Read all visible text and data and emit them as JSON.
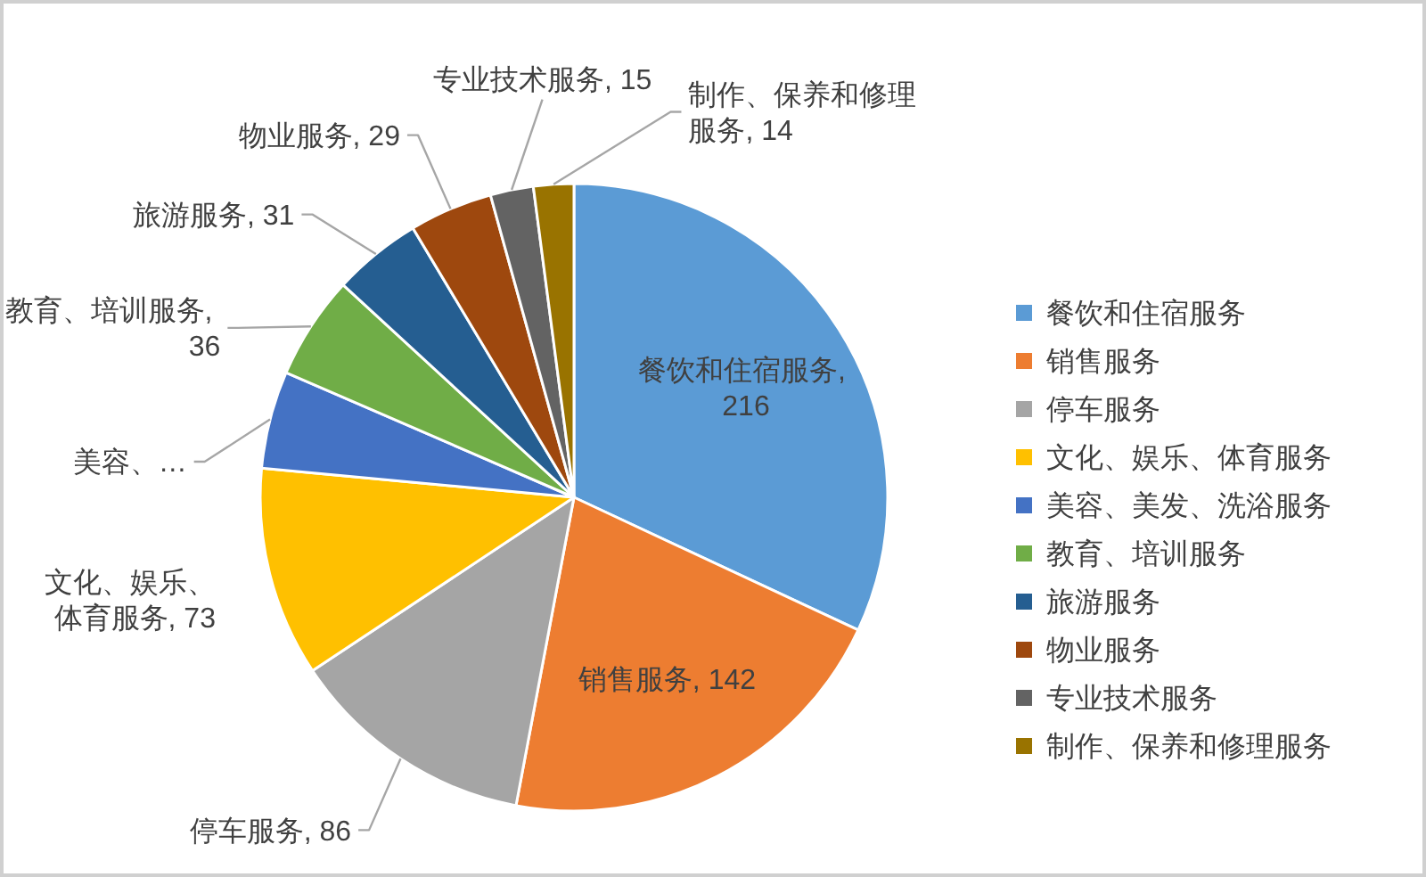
{
  "chart_data": {
    "type": "pie",
    "categories": [
      "餐饮和住宿服务",
      "销售服务",
      "停车服务",
      "文化、娱乐、体育服务",
      "美容、美发、洗浴服务",
      "教育、培训服务",
      "旅游服务",
      "物业服务",
      "专业技术服务",
      "制作、保养和修理服务"
    ],
    "values": [
      216,
      142,
      86,
      73,
      34,
      36,
      31,
      29,
      15,
      14
    ],
    "colors": [
      "#5b9bd5",
      "#ed7d31",
      "#a5a5a5",
      "#ffc000",
      "#4472c4",
      "#70ad47",
      "#255e91",
      "#9e480e",
      "#636363",
      "#997300"
    ],
    "value_labels": [
      "餐饮和住宿服务, 216",
      "销售服务, 142",
      "停车服务, 86",
      "文化、娱乐、体育服务, 73",
      "美容、…",
      "教育、培训服务, 36",
      "旅游服务, 31",
      "物业服务, 29",
      "专业技术服务, 15",
      "制作、保养和修理服务, 14"
    ],
    "legend": "right"
  }
}
